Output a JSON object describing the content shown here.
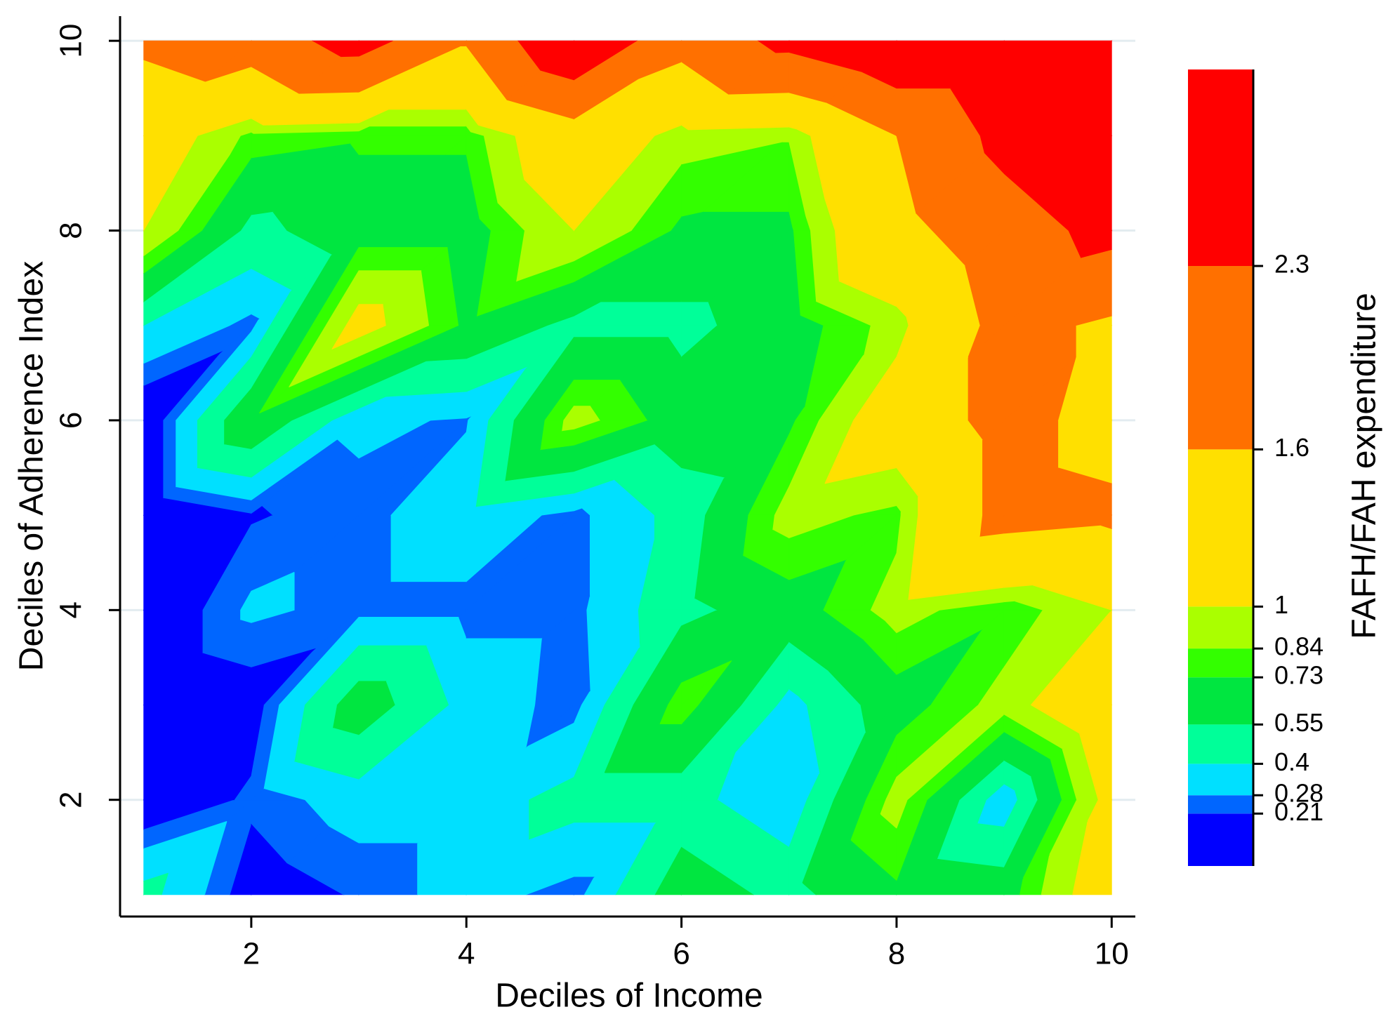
{
  "chart_data": {
    "type": "contour",
    "xlabel": "Deciles of Income",
    "ylabel": "Deciles of Adherence Index",
    "colorbar_label": "FAFH/FAH expenditure",
    "x": [
      1,
      2,
      3,
      4,
      5,
      6,
      7,
      8,
      9,
      10
    ],
    "y": [
      1,
      2,
      3,
      4,
      5,
      6,
      7,
      8,
      9,
      10
    ],
    "z": [
      [
        0.45,
        0.15,
        0.22,
        0.33,
        0.24,
        0.65,
        0.5,
        0.7,
        0.65,
        1.2
      ],
      [
        0.1,
        0.23,
        0.33,
        0.33,
        0.45,
        0.45,
        0.3,
        0.9,
        0.3,
        1.1
      ],
      [
        0.1,
        0.15,
        0.65,
        0.35,
        0.24,
        0.8,
        0.35,
        0.65,
        0.9,
        1.3
      ],
      [
        0.1,
        0.3,
        0.25,
        0.25,
        0.25,
        0.5,
        0.65,
        0.9,
        0.75,
        1.0
      ],
      [
        0.1,
        0.2,
        0.25,
        0.35,
        0.25,
        0.45,
        0.9,
        0.8,
        1.8,
        1.7
      ],
      [
        0.1,
        0.7,
        0.3,
        0.27,
        0.9,
        0.65,
        0.7,
        1.2,
        1.8,
        1.4
      ],
      [
        0.4,
        0.25,
        1.1,
        0.7,
        0.5,
        0.5,
        0.65,
        0.9,
        1.8,
        1.5
      ],
      [
        1.0,
        0.5,
        0.65,
        0.65,
        1.0,
        0.7,
        0.7,
        1.4,
        2.0,
        2.5
      ],
      [
        1.2,
        0.8,
        0.75,
        0.75,
        1.3,
        0.9,
        0.85,
        1.6,
        2.5,
        3.0
      ],
      [
        1.7,
        1.9,
        2.6,
        1.65,
        3.0,
        1.8,
        2.5,
        3.0,
        3.0,
        3.0
      ]
    ],
    "levels": [
      0.21,
      0.28,
      0.4,
      0.55,
      0.73,
      0.84,
      1,
      1.6,
      2.3
    ],
    "colors": [
      "#0000ff",
      "#0066ff",
      "#00e0ff",
      "#00ff99",
      "#00e640",
      "#33ff00",
      "#aaff00",
      "#ffe000",
      "#ff7000",
      "#ff0000"
    ],
    "zlim": [
      0.01,
      3.05
    ],
    "xlim": [
      0.78,
      10.22
    ],
    "ylim": [
      0.77,
      10.26
    ],
    "xticks": [
      2,
      4,
      6,
      8,
      10
    ],
    "yticks": [
      2,
      4,
      6,
      8,
      10
    ],
    "grid": true
  }
}
